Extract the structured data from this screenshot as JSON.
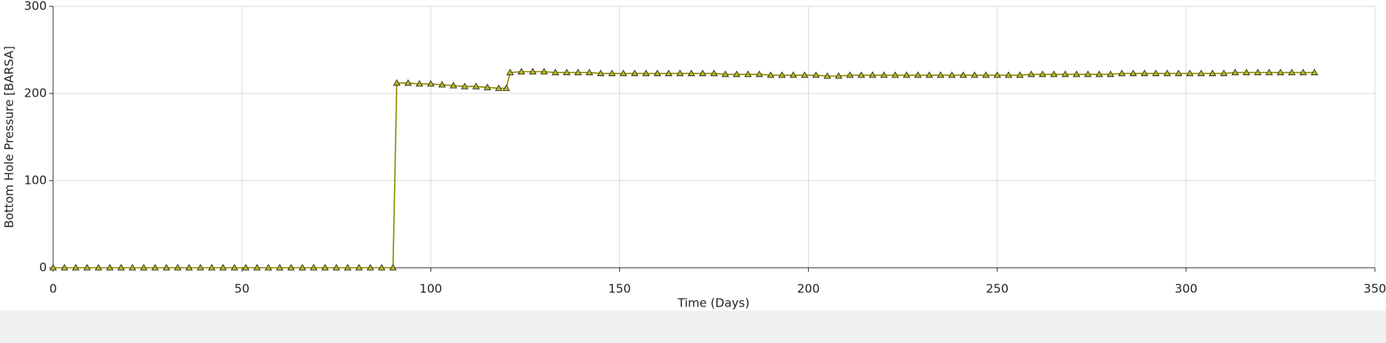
{
  "chart_data": {
    "type": "line",
    "xlabel": "Time (Days)",
    "ylabel": "Bottom Hole Pressure [BARSA]",
    "xlim": [
      0,
      350
    ],
    "xticks": [
      0,
      50,
      100,
      150,
      200,
      250,
      300,
      350
    ],
    "ylim": [
      0,
      300
    ],
    "yticks": [
      0,
      100,
      200,
      300
    ],
    "grid": true,
    "series": [
      {
        "color": "#8c8c00",
        "marker_color": "#b8b820",
        "x": [
          0,
          3,
          6,
          9,
          12,
          15,
          18,
          21,
          24,
          27,
          30,
          33,
          36,
          39,
          42,
          45,
          48,
          51,
          54,
          57,
          60,
          63,
          66,
          69,
          72,
          75,
          78,
          81,
          84,
          87,
          90,
          91,
          94,
          97,
          100,
          103,
          106,
          109,
          112,
          115,
          118,
          120,
          121,
          124,
          127,
          130,
          133,
          136,
          139,
          142,
          145,
          148,
          151,
          154,
          157,
          160,
          163,
          166,
          169,
          172,
          175,
          178,
          181,
          184,
          187,
          190,
          193,
          196,
          199,
          202,
          205,
          208,
          211,
          214,
          217,
          220,
          223,
          226,
          229,
          232,
          235,
          238,
          241,
          244,
          247,
          250,
          253,
          256,
          259,
          262,
          265,
          268,
          271,
          274,
          277,
          280,
          283,
          286,
          289,
          292,
          295,
          298,
          301,
          304,
          307,
          310,
          313,
          316,
          319,
          322,
          325,
          328,
          331,
          334
        ],
        "values": [
          0,
          0,
          0,
          0,
          0,
          0,
          0,
          0,
          0,
          0,
          0,
          0,
          0,
          0,
          0,
          0,
          0,
          0,
          0,
          0,
          0,
          0,
          0,
          0,
          0,
          0,
          0,
          0,
          0,
          0,
          0,
          212,
          212,
          211,
          211,
          210,
          209,
          208,
          208,
          207,
          206,
          206,
          224,
          225,
          225,
          225,
          224,
          224,
          224,
          224,
          223,
          223,
          223,
          223,
          223,
          223,
          223,
          223,
          223,
          223,
          223,
          222,
          222,
          222,
          222,
          221,
          221,
          221,
          221,
          221,
          220,
          220,
          221,
          221,
          221,
          221,
          221,
          221,
          221,
          221,
          221,
          221,
          221,
          221,
          221,
          221,
          221,
          221,
          222,
          222,
          222,
          222,
          222,
          222,
          222,
          222,
          223,
          223,
          223,
          223,
          223,
          223,
          223,
          223,
          223,
          223,
          224,
          224,
          224,
          224,
          224,
          224,
          224,
          224
        ]
      }
    ]
  }
}
